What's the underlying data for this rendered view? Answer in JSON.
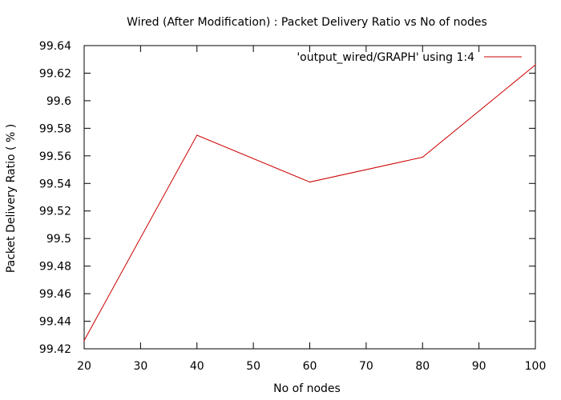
{
  "chart_data": {
    "type": "line",
    "title": "Wired (After Modification) : Packet Delivery Ratio vs No of nodes",
    "xlabel": "No of nodes",
    "ylabel": "Packet Delivery Ratio ( % )",
    "xlim": [
      20,
      100
    ],
    "ylim": [
      99.42,
      99.64
    ],
    "x_ticks": [
      20,
      30,
      40,
      50,
      60,
      70,
      80,
      90,
      100
    ],
    "y_ticks": [
      "99.42",
      "99.44",
      "99.46",
      "99.48",
      "99.5",
      "99.52",
      "99.54",
      "99.56",
      "99.58",
      "99.6",
      "99.62",
      "99.64"
    ],
    "grid": false,
    "legend_position": "top-right",
    "series": [
      {
        "name": "'output_wired/GRAPH' using 1:4",
        "color": "#cc0000",
        "x": [
          20,
          40,
          60,
          80,
          100
        ],
        "y": [
          99.426,
          99.575,
          99.541,
          99.559,
          99.626
        ]
      }
    ]
  }
}
